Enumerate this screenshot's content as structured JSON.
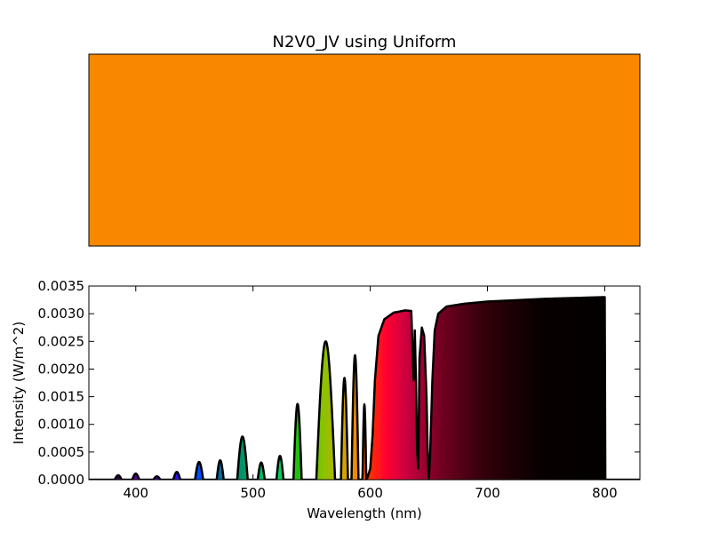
{
  "chart_data": [
    {
      "type": "color-swatch",
      "title": "N2V0_JV using Uniform",
      "swatch_color": "#f98800"
    },
    {
      "type": "area",
      "title": "",
      "xlabel": "Wavelength (nm)",
      "ylabel": "Intensity (W/m^2)",
      "xlim": [
        360,
        830
      ],
      "ylim": [
        0,
        0.0035
      ],
      "xticks": [
        400,
        500,
        600,
        700,
        800
      ],
      "yticks": [
        "0.0000",
        "0.0005",
        "0.0010",
        "0.0015",
        "0.0020",
        "0.0025",
        "0.0030",
        "0.0035"
      ],
      "fill": "spectral colors (violet to deep red), fading to black beyond ~680 nm",
      "peaks": [
        {
          "center": 385,
          "height": 8e-05,
          "width": 3
        },
        {
          "center": 400,
          "height": 0.00011,
          "width": 3
        },
        {
          "center": 418,
          "height": 6e-05,
          "width": 3
        },
        {
          "center": 435,
          "height": 0.00014,
          "width": 3
        },
        {
          "center": 454,
          "height": 0.00032,
          "width": 3.5
        },
        {
          "center": 472,
          "height": 0.00035,
          "width": 3
        },
        {
          "center": 491,
          "height": 0.00078,
          "width": 4.5
        },
        {
          "center": 507,
          "height": 0.00031,
          "width": 3
        },
        {
          "center": 523,
          "height": 0.00043,
          "width": 3
        },
        {
          "center": 538,
          "height": 0.00137,
          "width": 3.5
        },
        {
          "center": 562,
          "height": 0.0025,
          "width": 8
        },
        {
          "center": 578,
          "height": 0.00184,
          "width": 3
        },
        {
          "center": 587,
          "height": 0.00225,
          "width": 3
        },
        {
          "center": 595,
          "height": 0.00136,
          "width": 1.6
        }
      ],
      "continuum": [
        [
          597,
          0
        ],
        [
          600,
          0.0002
        ],
        [
          602,
          0.0008
        ],
        [
          604,
          0.0018
        ],
        [
          607,
          0.0026
        ],
        [
          612,
          0.0029
        ],
        [
          620,
          0.00302
        ],
        [
          630,
          0.00306
        ],
        [
          635,
          0.00305
        ],
        [
          637,
          0.0018
        ],
        [
          638,
          0.0027
        ],
        [
          639,
          0.0018
        ],
        [
          640,
          0.0005
        ],
        [
          641,
          0.0002
        ],
        [
          642,
          0.0022
        ],
        [
          644,
          0.00275
        ],
        [
          646,
          0.0026
        ],
        [
          648,
          0.0015
        ],
        [
          649,
          0.0005
        ],
        [
          650,
          0.0
        ],
        [
          651,
          0.0004
        ],
        [
          653,
          0.0018
        ],
        [
          655,
          0.0027
        ],
        [
          658,
          0.003
        ],
        [
          665,
          0.00313
        ],
        [
          680,
          0.00318
        ],
        [
          700,
          0.00322
        ],
        [
          750,
          0.00327
        ],
        [
          800,
          0.0033
        ],
        [
          800.5,
          0.0
        ]
      ]
    }
  ]
}
